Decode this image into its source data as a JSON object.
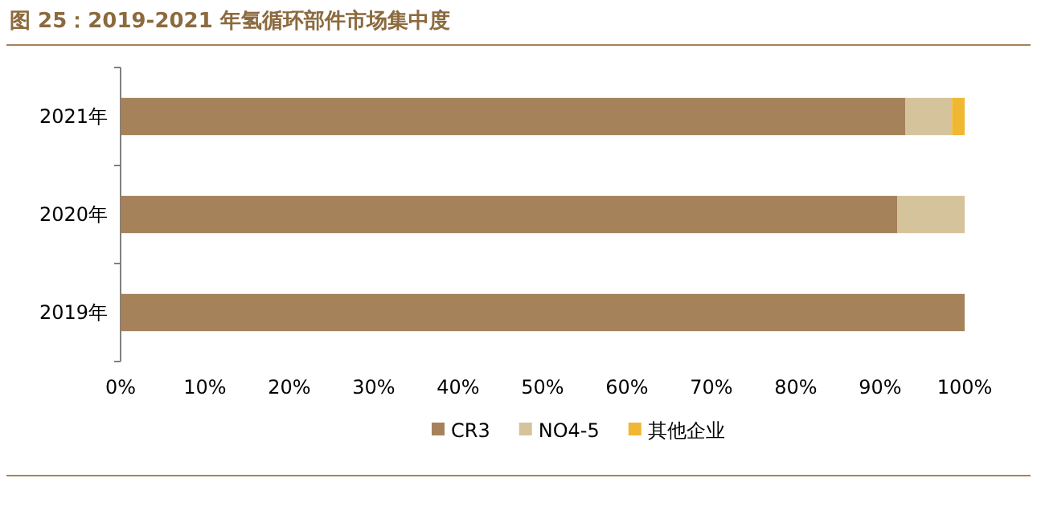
{
  "chart_data": {
    "type": "bar",
    "orientation": "horizontal",
    "stacked": true,
    "title": "图 25：2019-2021 年氢循环部件市场集中度",
    "categories": [
      "2021年",
      "2020年",
      "2019年"
    ],
    "series": [
      {
        "name": "CR3",
        "color": "#a5825a",
        "values": [
          93,
          92,
          100
        ]
      },
      {
        "name": "NO4-5",
        "color": "#d5c39c",
        "values": [
          5.5,
          8,
          0
        ]
      },
      {
        "name": "其他企业",
        "color": "#f0b732",
        "values": [
          1.5,
          0,
          0
        ]
      }
    ],
    "xlim": [
      0,
      100
    ],
    "xticks": [
      {
        "value": 0,
        "label": "0%"
      },
      {
        "value": 10,
        "label": "10%"
      },
      {
        "value": 20,
        "label": "20%"
      },
      {
        "value": 30,
        "label": "30%"
      },
      {
        "value": 40,
        "label": "40%"
      },
      {
        "value": 50,
        "label": "50%"
      },
      {
        "value": 60,
        "label": "60%"
      },
      {
        "value": 70,
        "label": "70%"
      },
      {
        "value": 80,
        "label": "80%"
      },
      {
        "value": 90,
        "label": "90%"
      },
      {
        "value": 100,
        "label": "100%"
      }
    ],
    "legend": "bottom"
  }
}
